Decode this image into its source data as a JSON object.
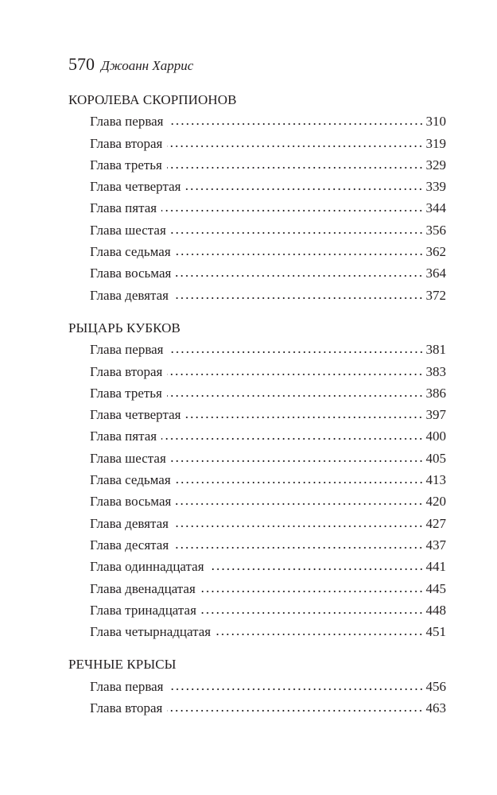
{
  "header": {
    "page_number": "570",
    "author": "Джоанн Харрис"
  },
  "sections": [
    {
      "title": "КОРОЛЕВА СКОРПИОНОВ",
      "entries": [
        {
          "title": "Глава первая",
          "page": "310"
        },
        {
          "title": "Глава вторая",
          "page": "319"
        },
        {
          "title": "Глава третья",
          "page": "329"
        },
        {
          "title": "Глава четвертая",
          "page": "339"
        },
        {
          "title": "Глава пятая",
          "page": "344"
        },
        {
          "title": "Глава шестая",
          "page": "356"
        },
        {
          "title": "Глава седьмая",
          "page": "362"
        },
        {
          "title": "Глава восьмая",
          "page": "364"
        },
        {
          "title": "Глава девятая",
          "page": "372"
        }
      ]
    },
    {
      "title": "РЫЦАРЬ КУБКОВ",
      "entries": [
        {
          "title": "Глава первая",
          "page": "381"
        },
        {
          "title": "Глава вторая",
          "page": "383"
        },
        {
          "title": "Глава третья",
          "page": "386"
        },
        {
          "title": "Глава четвертая",
          "page": "397"
        },
        {
          "title": "Глава пятая",
          "page": "400"
        },
        {
          "title": "Глава шестая",
          "page": "405"
        },
        {
          "title": "Глава седьмая",
          "page": "413"
        },
        {
          "title": "Глава восьмая",
          "page": "420"
        },
        {
          "title": "Глава девятая",
          "page": "427"
        },
        {
          "title": "Глава десятая",
          "page": "437"
        },
        {
          "title": "Глава одиннадцатая",
          "page": "441"
        },
        {
          "title": "Глава двенадцатая",
          "page": "445"
        },
        {
          "title": "Глава тринадцатая",
          "page": "448"
        },
        {
          "title": "Глава четырнадцатая",
          "page": "451"
        }
      ]
    },
    {
      "title": "РЕЧНЫЕ КРЫСЫ",
      "entries": [
        {
          "title": "Глава первая",
          "page": "456"
        },
        {
          "title": "Глава вторая",
          "page": "463"
        }
      ]
    }
  ]
}
